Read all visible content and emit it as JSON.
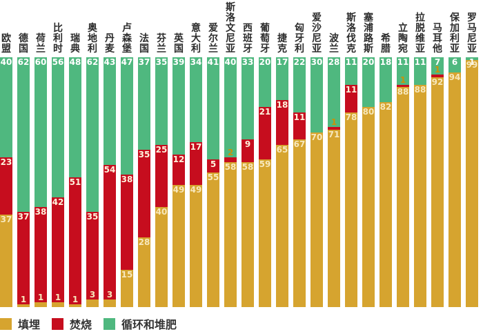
{
  "colors": {
    "landfill": "#D6A42F",
    "incineration": "#C60D1E",
    "recycling": "#4FB87F",
    "label_on_green": "#FFFFFF",
    "label_on_red": "#FFF2DC",
    "label_on_gold": "#F7E8BC",
    "label_tiny_red": "#C8920A",
    "text": "#2B2B2B"
  },
  "chart_data": {
    "type": "bar",
    "stacked": true,
    "orientation": "vertical",
    "unit": "%",
    "ylim": [
      0,
      100
    ],
    "grid": false,
    "legend_position": "bottom-left",
    "categories": [
      "欧盟",
      "德国",
      "荷兰",
      "比利时",
      "瑞典",
      "奥地利",
      "丹麦",
      "卢森堡",
      "法国",
      "芬兰",
      "英国",
      "意大利",
      "爱尔兰",
      "斯洛文尼亚",
      "西班牙",
      "葡萄牙",
      "捷克",
      "匈牙利",
      "爱沙尼亚",
      "波兰",
      "斯洛伐克",
      "塞浦路斯",
      "希腊",
      "立陶宛",
      "拉脱维亚",
      "马耳他",
      "保加利亚",
      "罗马尼亚"
    ],
    "series": [
      {
        "name": "填埋",
        "color": "#D6A42F",
        "values": [
          37,
          1,
          1,
          1,
          1,
          3,
          3,
          15,
          28,
          40,
          49,
          49,
          55,
          58,
          58,
          59,
          65,
          67,
          70,
          71,
          78,
          80,
          82,
          88,
          88,
          92,
          94,
          99
        ]
      },
      {
        "name": "焚烧",
        "color": "#C60D1E",
        "values": [
          23,
          37,
          38,
          42,
          51,
          35,
          54,
          38,
          35,
          25,
          12,
          17,
          5,
          2,
          9,
          21,
          18,
          11,
          0,
          1,
          11,
          0,
          0,
          1,
          0,
          1,
          0,
          0
        ]
      },
      {
        "name": "循环和堆肥",
        "color": "#4FB87F",
        "values": [
          40,
          62,
          60,
          56,
          48,
          62,
          43,
          47,
          37,
          35,
          39,
          34,
          41,
          40,
          33,
          20,
          17,
          22,
          30,
          28,
          11,
          20,
          18,
          11,
          11,
          7,
          6,
          1
        ]
      }
    ]
  },
  "legend": {
    "items": [
      {
        "label": "填埋",
        "color": "#D6A42F"
      },
      {
        "label": "焚烧",
        "color": "#C60D1E"
      },
      {
        "label": "循环和堆肥",
        "color": "#4FB87F"
      }
    ]
  }
}
